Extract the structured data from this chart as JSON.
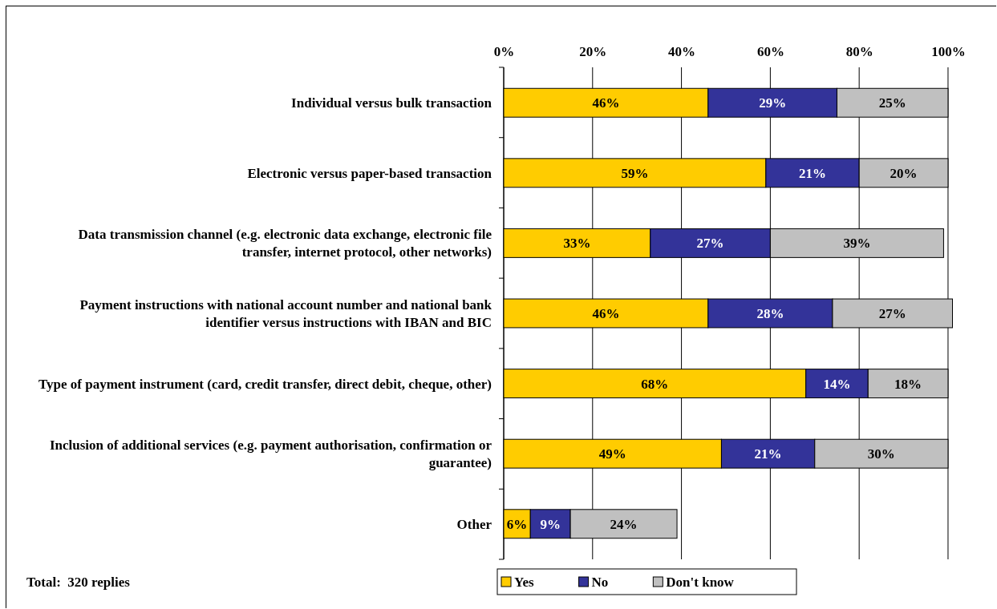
{
  "chart_data": {
    "type": "bar",
    "orientation": "horizontal",
    "stacked": true,
    "categories": [
      "Individual versus bulk transaction",
      "Electronic versus paper-based transaction",
      "Data transmission channel (e.g. electronic data exchange, electronic file transfer, internet protocol, other networks)",
      "Payment instructions with national account number and national bank identifier versus instructions with IBAN and BIC",
      "Type of payment instrument (card, credit transfer, direct debit, cheque, other)",
      "Inclusion of additional services (e.g. payment authorisation, confirmation or guarantee)",
      "Other"
    ],
    "series": [
      {
        "name": "Yes",
        "color": "#ffcc00",
        "values": [
          46,
          59,
          33,
          46,
          68,
          49,
          6
        ]
      },
      {
        "name": "No",
        "color": "#333399",
        "values": [
          29,
          21,
          27,
          28,
          14,
          21,
          9
        ]
      },
      {
        "name": "Don't know",
        "color": "#c0c0c0",
        "values": [
          25,
          20,
          39,
          27,
          18,
          30,
          24
        ]
      }
    ],
    "xlim": [
      0,
      101
    ],
    "xticks": [
      {
        "value": 0,
        "label": "0%"
      },
      {
        "value": 20,
        "label": "20%"
      },
      {
        "value": 40,
        "label": "40%"
      },
      {
        "value": 60,
        "label": "60%"
      },
      {
        "value": 80,
        "label": "80%"
      },
      {
        "value": 100,
        "label": "100%"
      }
    ],
    "grid": "x",
    "value_labels": [
      [
        "46%",
        "59%",
        "33%",
        "46%",
        "68%",
        "49%",
        "6%"
      ],
      [
        "29%",
        "21%",
        "27%",
        "28%",
        "14%",
        "21%",
        "9%"
      ],
      [
        "25%",
        "20%",
        "39%",
        "27%",
        "18%",
        "30%",
        "24%"
      ]
    ],
    "legend": "bottom",
    "annotations": [
      "Total:  320 replies"
    ]
  }
}
